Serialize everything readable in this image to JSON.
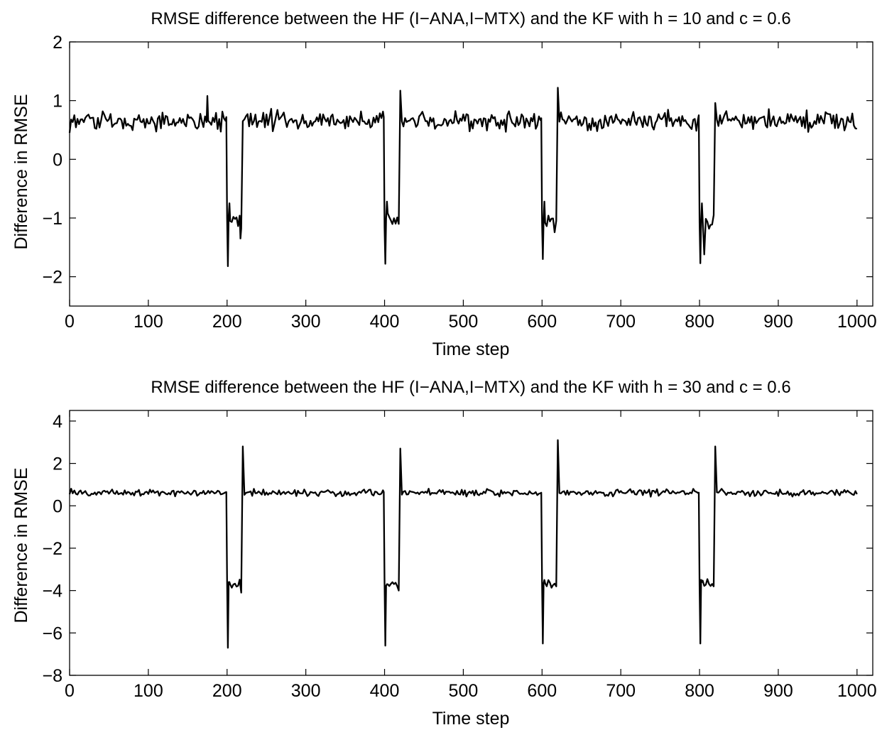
{
  "chart_data": [
    {
      "type": "line",
      "title": "RMSE difference between the HF (I−ANA,I−MTX) and the KF with h = 10 and c = 0.6",
      "xlabel": "Time step",
      "ylabel": "Difference in RMSE",
      "xlim": [
        0,
        1020
      ],
      "ylim": [
        -2.5,
        2
      ],
      "xticks": [
        0,
        100,
        200,
        300,
        400,
        500,
        600,
        700,
        800,
        900,
        1000
      ],
      "yticks": [
        2,
        1,
        0,
        -1,
        -2
      ],
      "ytick_labels": [
        "2",
        "1",
        "0",
        "−1",
        "−2"
      ],
      "grid": false,
      "series": [
        {
          "color": "#000000",
          "segments": [
            {
              "x0": 0,
              "x1": 200,
              "base": 0.65,
              "noise": 0.1
            },
            {
              "x0": 200,
              "x1": 220,
              "base": -1.05,
              "noise": 0.1
            },
            {
              "x0": 220,
              "x1": 400,
              "base": 0.65,
              "noise": 0.1
            },
            {
              "x0": 400,
              "x1": 420,
              "base": -1.05,
              "noise": 0.1
            },
            {
              "x0": 420,
              "x1": 600,
              "base": 0.65,
              "noise": 0.1
            },
            {
              "x0": 600,
              "x1": 620,
              "base": -1.05,
              "noise": 0.1
            },
            {
              "x0": 620,
              "x1": 800,
              "base": 0.65,
              "noise": 0.1
            },
            {
              "x0": 800,
              "x1": 820,
              "base": -1.05,
              "noise": 0.12
            },
            {
              "x0": 820,
              "x1": 1001,
              "base": 0.65,
              "noise": 0.1
            }
          ],
          "points": [
            {
              "x": 0,
              "y": 0.45
            },
            {
              "x": 175,
              "y": 1.08
            },
            {
              "x": 199,
              "y": 0.72
            },
            {
              "x": 201,
              "y": -1.82
            },
            {
              "x": 203,
              "y": -0.75
            },
            {
              "x": 217,
              "y": -1.35
            },
            {
              "x": 220,
              "y": 0.65
            },
            {
              "x": 399,
              "y": 0.72
            },
            {
              "x": 401,
              "y": -1.78
            },
            {
              "x": 403,
              "y": -0.72
            },
            {
              "x": 418,
              "y": -1.1
            },
            {
              "x": 420,
              "y": 1.17
            },
            {
              "x": 599,
              "y": 0.7
            },
            {
              "x": 601,
              "y": -1.7
            },
            {
              "x": 603,
              "y": -0.72
            },
            {
              "x": 618,
              "y": -1.05
            },
            {
              "x": 620,
              "y": 1.22
            },
            {
              "x": 799,
              "y": 0.75
            },
            {
              "x": 801,
              "y": -1.77
            },
            {
              "x": 803,
              "y": -0.75
            },
            {
              "x": 806,
              "y": -1.62
            },
            {
              "x": 818,
              "y": -0.95
            },
            {
              "x": 820,
              "y": 0.96
            },
            {
              "x": 1000,
              "y": 0.52
            }
          ]
        }
      ]
    },
    {
      "type": "line",
      "title": "RMSE difference between the HF (I−ANA,I−MTX) and the KF with h = 30 and c = 0.6",
      "xlabel": "Time step",
      "ylabel": "Difference in RMSE",
      "xlim": [
        0,
        1020
      ],
      "ylim": [
        -8,
        4.5
      ],
      "xticks": [
        0,
        100,
        200,
        300,
        400,
        500,
        600,
        700,
        800,
        900,
        1000
      ],
      "yticks": [
        4,
        2,
        0,
        -2,
        -4,
        -6,
        -8
      ],
      "ytick_labels": [
        "4",
        "2",
        "0",
        "−2",
        "−4",
        "−6",
        "−8"
      ],
      "grid": false,
      "series": [
        {
          "color": "#000000",
          "segments": [
            {
              "x0": 0,
              "x1": 200,
              "base": 0.62,
              "noise": 0.1
            },
            {
              "x0": 200,
              "x1": 220,
              "base": -3.7,
              "noise": 0.12
            },
            {
              "x0": 220,
              "x1": 400,
              "base": 0.62,
              "noise": 0.1
            },
            {
              "x0": 400,
              "x1": 420,
              "base": -3.7,
              "noise": 0.12
            },
            {
              "x0": 420,
              "x1": 600,
              "base": 0.62,
              "noise": 0.1
            },
            {
              "x0": 600,
              "x1": 620,
              "base": -3.7,
              "noise": 0.12
            },
            {
              "x0": 620,
              "x1": 800,
              "base": 0.62,
              "noise": 0.1
            },
            {
              "x0": 800,
              "x1": 820,
              "base": -3.7,
              "noise": 0.12
            },
            {
              "x0": 820,
              "x1": 1001,
              "base": 0.62,
              "noise": 0.1
            }
          ],
          "points": [
            {
              "x": 0,
              "y": 0.55
            },
            {
              "x": 199,
              "y": 0.65
            },
            {
              "x": 201,
              "y": -6.7
            },
            {
              "x": 203,
              "y": -3.6
            },
            {
              "x": 218,
              "y": -4.1
            },
            {
              "x": 220,
              "y": 2.8
            },
            {
              "x": 399,
              "y": 0.65
            },
            {
              "x": 401,
              "y": -6.6
            },
            {
              "x": 403,
              "y": -3.7
            },
            {
              "x": 418,
              "y": -4.0
            },
            {
              "x": 420,
              "y": 2.7
            },
            {
              "x": 599,
              "y": 0.62
            },
            {
              "x": 601,
              "y": -6.5
            },
            {
              "x": 603,
              "y": -3.5
            },
            {
              "x": 618,
              "y": -3.8
            },
            {
              "x": 620,
              "y": 3.1
            },
            {
              "x": 799,
              "y": 0.62
            },
            {
              "x": 801,
              "y": -6.5
            },
            {
              "x": 803,
              "y": -3.6
            },
            {
              "x": 818,
              "y": -3.8
            },
            {
              "x": 820,
              "y": 2.8
            },
            {
              "x": 1000,
              "y": 0.55
            }
          ]
        }
      ]
    }
  ]
}
